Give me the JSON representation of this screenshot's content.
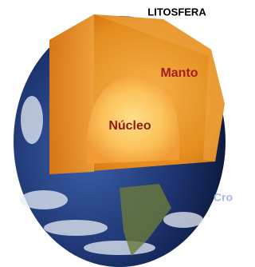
{
  "labels": {
    "lithosphere": "LITOSFERA",
    "mantle": "Manto",
    "core": "Núcleo",
    "crust": "Cro"
  }
}
